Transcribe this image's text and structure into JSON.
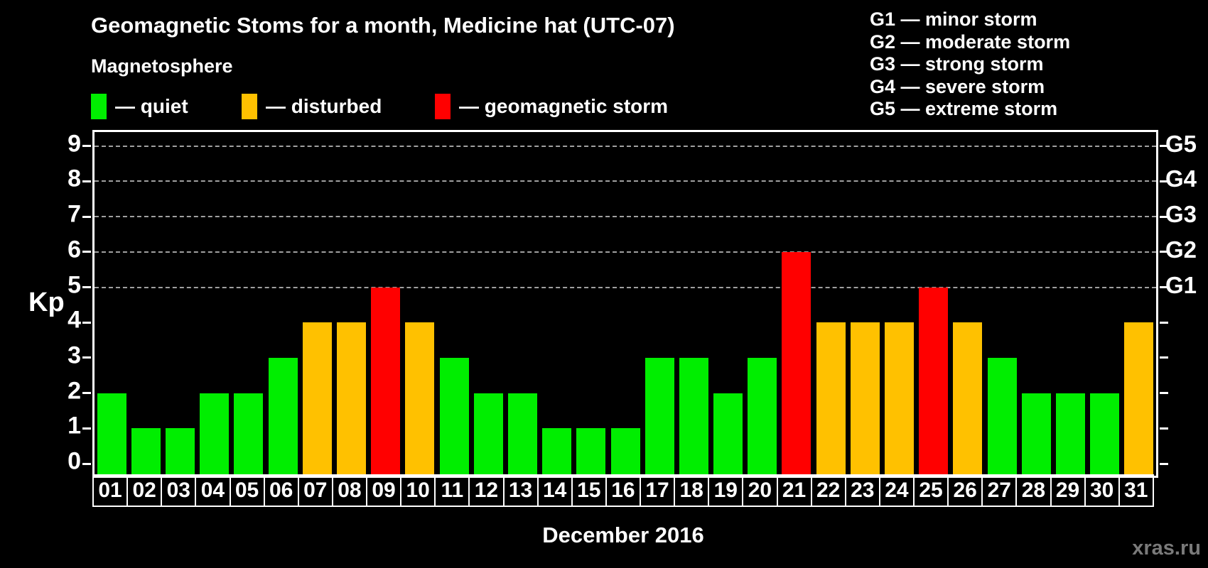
{
  "title": "Geomagnetic Stoms for a month, Medicine hat (UTC-07)",
  "legend": {
    "heading": "Magnetosphere",
    "items": [
      {
        "key": "quiet",
        "label": "— quiet",
        "color": "#00ee00"
      },
      {
        "key": "disturbed",
        "label": "— disturbed",
        "color": "#ffc100"
      },
      {
        "key": "storm",
        "label": "— geomagnetic storm",
        "color": "#ff0000"
      }
    ]
  },
  "g_scale_legend": [
    "G1 — minor storm",
    "G2 — moderate storm",
    "G3 — strong storm",
    "G4 — severe storm",
    "G5 — extreme storm"
  ],
  "watermark": "xras.ru",
  "chart_data": {
    "type": "bar",
    "title": "Geomagnetic Stoms for a month, Medicine hat (UTC-07)",
    "xlabel": "December 2016",
    "ylabel": "Kp",
    "ylim": [
      0,
      9
    ],
    "yticks": [
      0,
      1,
      2,
      3,
      4,
      5,
      6,
      7,
      8,
      9
    ],
    "grid_levels": [
      5,
      6,
      7,
      8,
      9
    ],
    "right_axis_labels": [
      {
        "kp": 5,
        "label": "G1"
      },
      {
        "kp": 6,
        "label": "G2"
      },
      {
        "kp": 7,
        "label": "G3"
      },
      {
        "kp": 8,
        "label": "G4"
      },
      {
        "kp": 9,
        "label": "G5"
      }
    ],
    "categories": [
      "01",
      "02",
      "03",
      "04",
      "05",
      "06",
      "07",
      "08",
      "09",
      "10",
      "11",
      "12",
      "13",
      "14",
      "15",
      "16",
      "17",
      "18",
      "19",
      "20",
      "21",
      "22",
      "23",
      "24",
      "25",
      "26",
      "27",
      "28",
      "29",
      "30",
      "31"
    ],
    "values": [
      2,
      1,
      1,
      2,
      2,
      3,
      4,
      4,
      5,
      4,
      3,
      2,
      2,
      1,
      1,
      1,
      3,
      3,
      2,
      3,
      6,
      4,
      4,
      4,
      5,
      4,
      3,
      2,
      2,
      2,
      4
    ],
    "statuses": [
      "quiet",
      "quiet",
      "quiet",
      "quiet",
      "quiet",
      "quiet",
      "disturbed",
      "disturbed",
      "storm",
      "disturbed",
      "quiet",
      "quiet",
      "quiet",
      "quiet",
      "quiet",
      "quiet",
      "quiet",
      "quiet",
      "quiet",
      "quiet",
      "storm",
      "disturbed",
      "disturbed",
      "disturbed",
      "storm",
      "disturbed",
      "quiet",
      "quiet",
      "quiet",
      "quiet",
      "disturbed"
    ],
    "colors": {
      "quiet": "#00ee00",
      "disturbed": "#ffc100",
      "storm": "#ff0000"
    },
    "legend_position": "top",
    "grid": "dashed horizontal at Kp 5-9 only"
  }
}
